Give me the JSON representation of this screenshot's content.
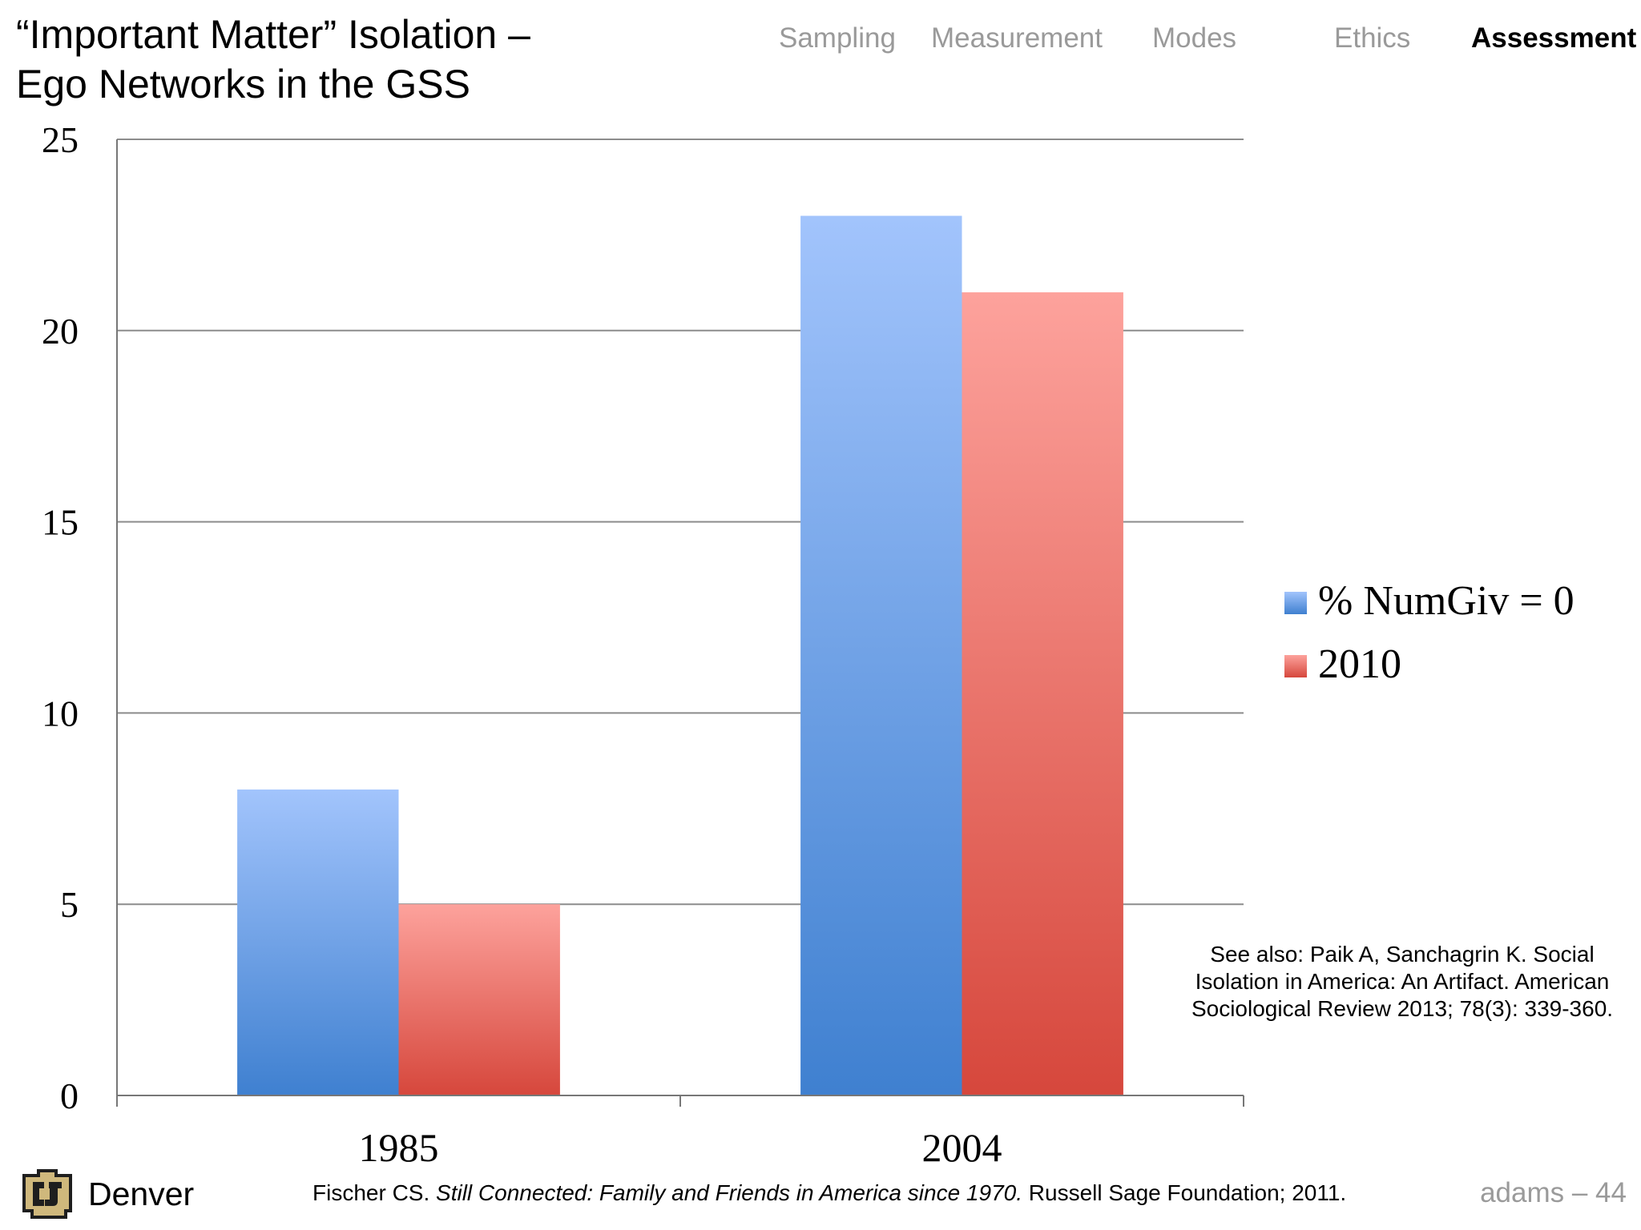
{
  "slide": {
    "title_line1": "“Important Matter” Isolation –",
    "title_line2": "Ego Networks in the GSS",
    "nav": [
      {
        "label": "Sampling",
        "active": false
      },
      {
        "label": "Measurement",
        "active": false
      },
      {
        "label": "Modes",
        "active": false
      },
      {
        "label": "Ethics",
        "active": false
      },
      {
        "label": "Assessment",
        "active": true
      }
    ],
    "see_also": "See also: Paik A, Sanchagrin K. Social Isolation in America: An Artifact. American Sociological Review 2013; 78(3): 339-360.",
    "footer": {
      "institution": "Denver",
      "citation_author": "Fischer CS. ",
      "citation_title": "Still Connected: Family and Friends in America since 1970.",
      "citation_rest": " Russell Sage Foundation; 2011.",
      "page_label": "adams – 44"
    },
    "colors": {
      "series1_top": "#a2c4fc",
      "series1_bottom": "#3f80d0",
      "series2_top": "#fda29c",
      "series2_bottom": "#d6473c",
      "nav_inactive": "#9a9a9a",
      "logo_gold": "#cfb87c"
    }
  },
  "chart_data": {
    "type": "bar",
    "categories": [
      "1985",
      "2004"
    ],
    "series": [
      {
        "name": "% NumGiv = 0",
        "values": [
          8,
          23
        ]
      },
      {
        "name": "2010",
        "values": [
          5,
          21
        ]
      }
    ],
    "ylim": [
      0,
      25
    ],
    "yticks": [
      0,
      5,
      10,
      15,
      20,
      25
    ],
    "grid": true,
    "legend_position": "right"
  }
}
